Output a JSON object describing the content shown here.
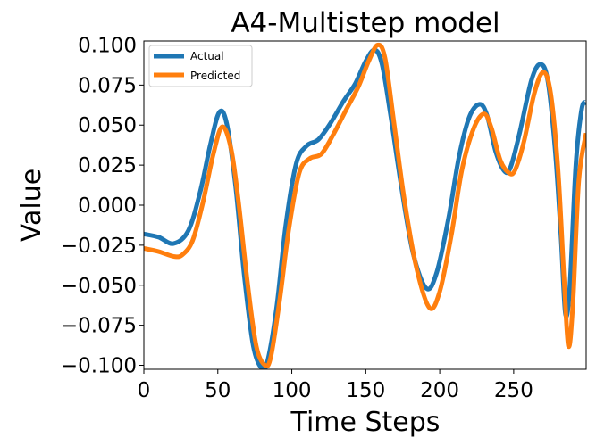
{
  "chart_data": {
    "type": "line",
    "title": "A4-Multistep model",
    "xlabel": "Time Steps",
    "ylabel": "Value",
    "xlim": [
      0,
      299
    ],
    "ylim": [
      -0.1025,
      0.1025
    ],
    "xticks": [
      0,
      50,
      100,
      150,
      200,
      250
    ],
    "xtick_labels": [
      "0",
      "50",
      "100",
      "150",
      "200",
      "250"
    ],
    "yticks": [
      -0.1,
      -0.075,
      -0.05,
      -0.025,
      0.0,
      0.025,
      0.05,
      0.075,
      0.1
    ],
    "ytick_labels": [
      "−0.100",
      "−0.075",
      "−0.050",
      "−0.025",
      "0.000",
      "0.025",
      "0.050",
      "0.075",
      "0.100"
    ],
    "legend_position": "upper-left",
    "grid": false,
    "series": [
      {
        "name": "Actual",
        "color": "#1f77b4",
        "x": [
          0,
          10,
          20,
          30,
          38,
          45,
          51,
          56,
          62,
          68,
          74,
          80,
          84,
          90,
          96,
          103,
          110,
          118,
          126,
          135,
          143,
          150,
          156,
          161,
          167,
          174,
          182,
          191,
          198,
          206,
          213,
          220,
          227,
          232,
          238,
          244,
          248,
          254,
          262,
          268,
          273,
          278,
          282,
          285,
          288,
          292,
          296,
          299
        ],
        "y": [
          -0.018,
          -0.02,
          -0.024,
          -0.016,
          0.008,
          0.038,
          0.058,
          0.051,
          0.012,
          -0.045,
          -0.088,
          -0.102,
          -0.096,
          -0.062,
          -0.012,
          0.026,
          0.037,
          0.041,
          0.051,
          0.065,
          0.076,
          0.09,
          0.097,
          0.088,
          0.055,
          0.012,
          -0.03,
          -0.052,
          -0.042,
          -0.008,
          0.03,
          0.055,
          0.063,
          0.056,
          0.033,
          0.021,
          0.024,
          0.045,
          0.078,
          0.088,
          0.078,
          0.035,
          -0.02,
          -0.068,
          -0.05,
          0.025,
          0.06,
          0.064
        ]
      },
      {
        "name": "Predicted",
        "color": "#ff7f0e",
        "x": [
          0,
          10,
          20,
          26,
          33,
          40,
          47,
          53,
          59,
          64,
          70,
          76,
          82,
          86,
          92,
          98,
          105,
          112,
          120,
          128,
          137,
          145,
          152,
          158,
          163,
          169,
          176,
          184,
          193,
          200,
          208,
          215,
          223,
          230,
          235,
          241,
          247,
          251,
          257,
          264,
          270,
          275,
          280,
          284,
          287,
          290,
          294,
          299
        ],
        "y": [
          -0.027,
          -0.029,
          -0.032,
          -0.031,
          -0.022,
          0.002,
          0.032,
          0.049,
          0.035,
          0.002,
          -0.048,
          -0.088,
          -0.1,
          -0.094,
          -0.058,
          -0.015,
          0.02,
          0.029,
          0.032,
          0.044,
          0.06,
          0.074,
          0.09,
          0.1,
          0.092,
          0.052,
          0.004,
          -0.038,
          -0.064,
          -0.054,
          -0.018,
          0.022,
          0.048,
          0.057,
          0.048,
          0.028,
          0.02,
          0.022,
          0.04,
          0.07,
          0.083,
          0.07,
          0.022,
          -0.045,
          -0.088,
          -0.062,
          0.015,
          0.045
        ]
      }
    ]
  }
}
